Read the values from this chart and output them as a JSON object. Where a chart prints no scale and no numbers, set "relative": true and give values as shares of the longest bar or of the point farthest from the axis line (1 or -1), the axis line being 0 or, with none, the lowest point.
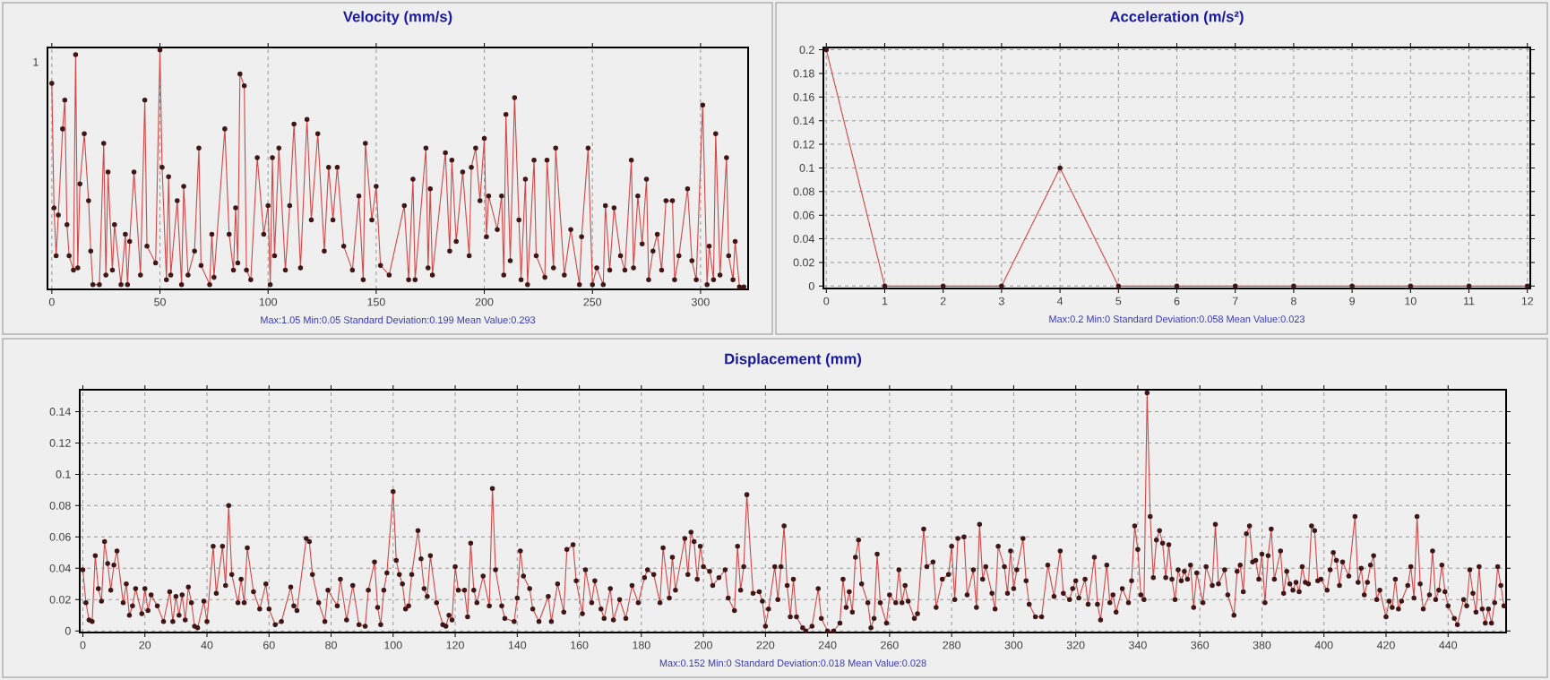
{
  "chart_data": [
    {
      "type": "line",
      "title": "Velocity (mm/s)",
      "color": "#d04848",
      "marker": "circle",
      "grid": "x",
      "relative": true,
      "xlim": [
        -2,
        322
      ],
      "xticks": [
        0,
        50,
        100,
        150,
        200,
        250,
        300
      ],
      "annotations": [
        "Max:1.05 Min:0.05 Standard Deviation:0.199 Mean Value:0.293",
        "1"
      ],
      "x": [
        0,
        1,
        2,
        3,
        5,
        6,
        7,
        8,
        10,
        11,
        12,
        13,
        15,
        17,
        18,
        19,
        22,
        24,
        25,
        26,
        28,
        29,
        32,
        34,
        35,
        36,
        38,
        41,
        43,
        44,
        48,
        50,
        51,
        53,
        54,
        55,
        58,
        60,
        61,
        63,
        66,
        68,
        69,
        73,
        74,
        75,
        80,
        82,
        84,
        85,
        86,
        87,
        89,
        90,
        92,
        95,
        98,
        100,
        101,
        102,
        103,
        105,
        108,
        110,
        112,
        115,
        118,
        120,
        123,
        126,
        128,
        130,
        132,
        135,
        139,
        142,
        144,
        145,
        148,
        150,
        152,
        156,
        163,
        165,
        167,
        168,
        173,
        174,
        175,
        176,
        182,
        184,
        185,
        187,
        190,
        193,
        194,
        196,
        198,
        200,
        201,
        202,
        206,
        208,
        209,
        210,
        212,
        214,
        216,
        217,
        219,
        220,
        223,
        224,
        228,
        229,
        232,
        233,
        237,
        240,
        244,
        245,
        248,
        250,
        252,
        255,
        256,
        258,
        260,
        263,
        265,
        268,
        269,
        271,
        273,
        275,
        276,
        278,
        280,
        282,
        284,
        287,
        288,
        290,
        294,
        296,
        298,
        301,
        303,
        304,
        306,
        307,
        309,
        312,
        313,
        315,
        316,
        318,
        320
      ],
      "values": [
        0.86,
        0.34,
        0.14,
        0.31,
        0.67,
        0.79,
        0.27,
        0.14,
        0.08,
        0.98,
        0.09,
        0.44,
        0.65,
        0.37,
        0.16,
        0.02,
        0.02,
        0.61,
        0.06,
        0.49,
        0.08,
        0.27,
        0.02,
        0.23,
        0.02,
        0.2,
        0.49,
        0.06,
        0.79,
        0.18,
        0.11,
        1.0,
        0.51,
        0.04,
        0.47,
        0.06,
        0.37,
        0.02,
        0.43,
        0.06,
        0.16,
        0.59,
        0.1,
        0.02,
        0.23,
        0.05,
        0.67,
        0.23,
        0.08,
        0.34,
        0.11,
        0.9,
        0.85,
        0.08,
        0.04,
        0.55,
        0.23,
        0.35,
        0.02,
        0.55,
        0.14,
        0.59,
        0.08,
        0.35,
        0.69,
        0.09,
        0.71,
        0.29,
        0.65,
        0.16,
        0.51,
        0.29,
        0.51,
        0.18,
        0.08,
        0.39,
        0.04,
        0.61,
        0.29,
        0.43,
        0.1,
        0.06,
        0.35,
        0.04,
        0.46,
        0.04,
        0.59,
        0.09,
        0.42,
        0.06,
        0.57,
        0.16,
        0.54,
        0.2,
        0.49,
        0.14,
        0.51,
        0.59,
        0.37,
        0.63,
        0.22,
        0.39,
        0.25,
        0.39,
        0.06,
        0.73,
        0.12,
        0.8,
        0.29,
        0.04,
        0.46,
        0.02,
        0.54,
        0.14,
        0.05,
        0.54,
        0.09,
        0.59,
        0.06,
        0.25,
        0.02,
        0.22,
        0.59,
        0.02,
        0.09,
        0.02,
        0.35,
        0.08,
        0.34,
        0.14,
        0.08,
        0.54,
        0.09,
        0.39,
        0.19,
        0.46,
        0.04,
        0.16,
        0.23,
        0.08,
        0.37,
        0.37,
        0.04,
        0.14,
        0.42,
        0.12,
        0.04,
        0.77,
        0.02,
        0.18,
        0.04,
        0.65,
        0.06,
        0.55,
        0.14,
        0.04,
        0.2,
        0.01,
        0.01
      ]
    },
    {
      "type": "line",
      "title": "Acceleration (m/s²)",
      "color": "#d04848",
      "marker": "circle",
      "grid": true,
      "xlim": [
        -0.05,
        12.05
      ],
      "ylim": [
        -0.002,
        0.202
      ],
      "xticks": [
        0,
        1,
        2,
        3,
        4,
        5,
        6,
        7,
        8,
        9,
        10,
        11,
        12
      ],
      "yticks": [
        0,
        0.02,
        0.04,
        0.06,
        0.08,
        0.1,
        0.12,
        0.14,
        0.16,
        0.18,
        0.2
      ],
      "annotations": [
        "Max:0.2 Min:0 Standard Deviation:0.058 Mean Value:0.023"
      ],
      "x": [
        0,
        1,
        2,
        3,
        4,
        5,
        6,
        7,
        8,
        9,
        10,
        11,
        12
      ],
      "values": [
        0.2,
        0,
        0,
        0,
        0.1,
        0,
        0,
        0,
        0,
        0,
        0,
        0,
        0
      ]
    },
    {
      "type": "line",
      "title": "Displacement (mm)",
      "color": "#d04848",
      "marker": "circle",
      "grid": true,
      "xlim": [
        -1,
        458.7
      ],
      "ylim": [
        -0.001,
        0.154
      ],
      "xticks": [
        0,
        20,
        40,
        60,
        80,
        100,
        120,
        140,
        160,
        180,
        200,
        220,
        240,
        260,
        280,
        300,
        320,
        340,
        360,
        380,
        400,
        420,
        440
      ],
      "yticks": [
        0,
        0.02,
        0.04,
        0.06,
        0.08,
        0.1,
        0.12,
        0.14
      ],
      "annotations": [
        "Max:0.152 Min:0 Standard Deviation:0.018 Mean Value:0.028"
      ],
      "x": [
        0,
        1,
        2,
        3,
        4,
        5,
        6,
        7,
        8,
        9,
        10,
        11,
        13,
        14,
        15,
        16,
        17,
        19,
        20,
        21,
        22,
        24,
        26,
        28,
        29,
        30,
        31,
        32,
        33,
        34,
        35,
        36,
        37,
        39,
        40,
        42,
        43,
        45,
        46,
        47,
        48,
        50,
        51,
        52,
        53,
        55,
        57,
        59,
        60,
        62,
        64,
        67,
        68,
        69,
        72,
        73,
        74,
        76,
        78,
        79,
        82,
        83,
        85,
        87,
        89,
        91,
        92,
        94,
        95,
        96,
        97,
        98,
        100,
        101,
        102,
        103,
        104,
        105,
        106,
        108,
        109,
        110,
        111,
        112,
        114,
        116,
        117,
        118,
        119,
        120,
        121,
        123,
        124,
        125,
        126,
        127,
        129,
        131,
        132,
        133,
        135,
        136,
        139,
        140,
        141,
        142,
        144,
        145,
        147,
        150,
        151,
        153,
        155,
        156,
        158,
        159,
        161,
        162,
        164,
        165,
        167,
        168,
        170,
        171,
        173,
        175,
        177,
        179,
        181,
        182,
        184,
        186,
        187,
        189,
        190,
        191,
        194,
        195,
        196,
        197,
        198,
        199,
        200,
        202,
        203,
        205,
        207,
        208,
        210,
        211,
        212,
        213,
        214,
        216,
        218,
        219,
        220,
        221,
        223,
        224,
        225,
        226,
        227,
        228,
        229,
        230,
        232,
        233,
        235,
        237,
        238,
        240,
        242,
        244,
        245,
        246,
        247,
        248,
        249,
        250,
        251,
        253,
        254,
        255,
        256,
        257,
        259,
        260,
        262,
        263,
        264,
        265,
        266,
        268,
        269,
        271,
        272,
        274,
        275,
        277,
        279,
        280,
        281,
        282,
        284,
        285,
        287,
        288,
        289,
        290,
        291,
        293,
        294,
        295,
        297,
        298,
        299,
        300,
        301,
        303,
        304,
        305,
        307,
        309,
        311,
        313,
        315,
        316,
        318,
        319,
        320,
        321,
        323,
        324,
        326,
        327,
        328,
        330,
        331,
        332,
        333,
        335,
        337,
        338,
        339,
        340,
        341,
        342,
        343,
        344,
        345,
        346,
        347,
        348,
        349,
        350,
        351,
        352,
        353,
        354,
        355,
        356,
        357,
        358,
        359,
        361,
        362,
        364,
        365,
        366,
        368,
        369,
        371,
        372,
        373,
        374,
        375,
        376,
        377,
        378,
        379,
        380,
        381,
        382,
        383,
        384,
        386,
        387,
        388,
        389,
        390,
        391,
        392,
        393,
        394,
        395,
        396,
        397,
        398,
        399,
        401,
        402,
        403,
        404,
        405,
        406,
        408,
        410,
        411,
        412,
        413,
        414,
        415,
        416,
        417,
        418,
        420,
        421,
        422,
        423,
        424,
        425,
        427,
        428,
        429,
        430,
        431,
        432,
        434,
        435,
        436,
        437,
        438,
        439,
        440,
        442,
        443,
        445,
        446,
        447,
        448,
        449,
        450,
        451,
        452,
        453,
        454,
        455,
        456,
        457,
        458
      ],
      "values": [
        0.039,
        0.018,
        0.007,
        0.006,
        0.048,
        0.027,
        0.019,
        0.057,
        0.043,
        0.026,
        0.042,
        0.051,
        0.018,
        0.03,
        0.01,
        0.016,
        0.027,
        0.011,
        0.027,
        0.013,
        0.023,
        0.016,
        0.006,
        0.025,
        0.006,
        0.022,
        0.01,
        0.023,
        0.007,
        0.028,
        0.018,
        0.003,
        0.002,
        0.019,
        0.006,
        0.054,
        0.024,
        0.054,
        0.029,
        0.08,
        0.036,
        0.018,
        0.033,
        0.018,
        0.053,
        0.025,
        0.014,
        0.03,
        0.014,
        0.004,
        0.006,
        0.028,
        0.016,
        0.013,
        0.059,
        0.057,
        0.036,
        0.018,
        0.006,
        0.026,
        0.016,
        0.033,
        0.007,
        0.029,
        0.004,
        0.003,
        0.026,
        0.044,
        0.015,
        0.004,
        0.026,
        0.037,
        0.089,
        0.045,
        0.036,
        0.03,
        0.014,
        0.016,
        0.036,
        0.064,
        0.046,
        0.027,
        0.022,
        0.048,
        0.018,
        0.004,
        0.003,
        0.01,
        0.007,
        0.041,
        0.026,
        0.026,
        0.009,
        0.056,
        0.026,
        0.018,
        0.035,
        0.016,
        0.091,
        0.039,
        0.016,
        0.008,
        0.006,
        0.021,
        0.051,
        0.035,
        0.027,
        0.014,
        0.006,
        0.022,
        0.006,
        0.03,
        0.012,
        0.052,
        0.055,
        0.032,
        0.011,
        0.039,
        0.018,
        0.032,
        0.014,
        0.008,
        0.027,
        0.007,
        0.02,
        0.008,
        0.029,
        0.018,
        0.034,
        0.039,
        0.036,
        0.018,
        0.053,
        0.021,
        0.047,
        0.026,
        0.059,
        0.036,
        0.063,
        0.057,
        0.033,
        0.054,
        0.041,
        0.038,
        0.029,
        0.034,
        0.039,
        0.021,
        0.013,
        0.054,
        0.026,
        0.041,
        0.087,
        0.024,
        0.025,
        0.019,
        0.003,
        0.014,
        0.041,
        0.02,
        0.041,
        0.067,
        0.029,
        0.009,
        0.033,
        0.009,
        0.002,
        0,
        0.003,
        0.027,
        0.008,
        0,
        0,
        0.005,
        0.033,
        0.015,
        0.025,
        0.012,
        0.047,
        0.058,
        0.03,
        0.018,
        0.002,
        0.008,
        0.049,
        0.018,
        0.005,
        0.023,
        0.018,
        0.039,
        0.018,
        0.029,
        0.019,
        0.008,
        0.011,
        0.065,
        0.041,
        0.044,
        0.015,
        0.033,
        0.036,
        0.054,
        0.02,
        0.059,
        0.06,
        0.023,
        0.039,
        0.015,
        0.068,
        0.033,
        0.041,
        0.024,
        0.014,
        0.054,
        0.041,
        0.024,
        0.051,
        0.027,
        0.039,
        0.059,
        0.032,
        0.017,
        0.009,
        0.009,
        0.042,
        0.022,
        0.051,
        0.024,
        0.02,
        0.027,
        0.032,
        0.021,
        0.033,
        0.017,
        0.047,
        0.017,
        0.007,
        0.042,
        0.018,
        0.023,
        0.012,
        0.027,
        0.018,
        0.032,
        0.067,
        0.052,
        0.023,
        0.02,
        0.152,
        0.073,
        0.034,
        0.058,
        0.064,
        0.056,
        0.034,
        0.055,
        0.033,
        0.02,
        0.039,
        0.032,
        0.038,
        0.033,
        0.042,
        0.015,
        0.037,
        0.018,
        0.041,
        0.029,
        0.068,
        0.03,
        0.039,
        0.023,
        0.01,
        0.038,
        0.042,
        0.025,
        0.062,
        0.067,
        0.044,
        0.045,
        0.033,
        0.049,
        0.018,
        0.048,
        0.065,
        0.033,
        0.051,
        0.024,
        0.038,
        0.03,
        0.026,
        0.031,
        0.025,
        0.041,
        0.031,
        0.03,
        0.067,
        0.064,
        0.032,
        0.033,
        0.026,
        0.039,
        0.05,
        0.045,
        0.029,
        0.044,
        0.035,
        0.073,
        0.031,
        0.04,
        0.023,
        0.031,
        0.042,
        0.048,
        0.02,
        0.026,
        0.009,
        0.019,
        0.015,
        0.033,
        0.014,
        0.019,
        0.029,
        0.041,
        0.021,
        0.073,
        0.03,
        0.014,
        0.023,
        0.051,
        0.02,
        0.026,
        0.042,
        0.025,
        0.016,
        0.008,
        0.004,
        0.02,
        0.016,
        0.039,
        0.024,
        0.012,
        0.041,
        0.014,
        0.005,
        0.014,
        0.005,
        0.018,
        0.041,
        0.029,
        0.016
      ]
    }
  ]
}
